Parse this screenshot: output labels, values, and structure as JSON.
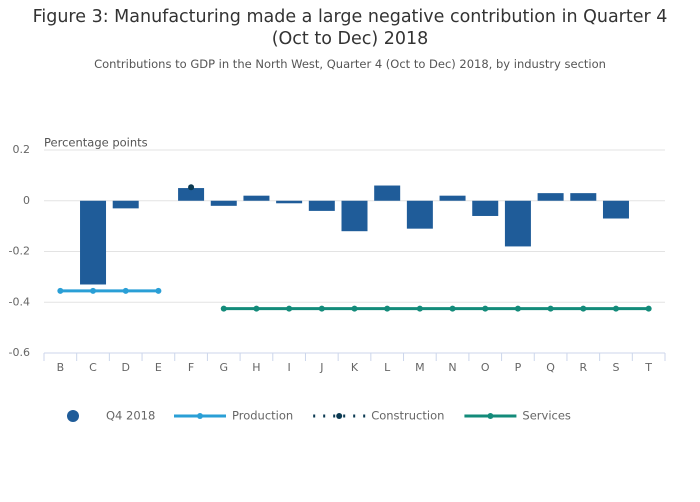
{
  "chart_data": {
    "type": "bar",
    "title": "Figure 3: Manufacturing made a large negative contribution in Quarter 4 (Oct to Dec) 2018",
    "subtitle": "Contributions to GDP in the North West, Quarter 4 (Oct to Dec) 2018, by industry section",
    "y_label": "Percentage points",
    "categories": [
      "B",
      "C",
      "D",
      "E",
      "F",
      "G",
      "H",
      "I",
      "J",
      "K",
      "L",
      "M",
      "N",
      "O",
      "P",
      "Q",
      "R",
      "S",
      "T"
    ],
    "ylim": [
      -0.6,
      0.2
    ],
    "yticks": [
      0.2,
      0,
      -0.2,
      -0.4,
      -0.6
    ],
    "grid": true,
    "legend": "bottom",
    "series": [
      {
        "name": "Q4 2018",
        "type": "bar",
        "color": "#1f5c99",
        "values": [
          null,
          -0.33,
          -0.03,
          null,
          0.05,
          -0.02,
          0.02,
          -0.01,
          -0.04,
          -0.12,
          0.06,
          -0.11,
          0.02,
          -0.06,
          -0.18,
          0.03,
          0.03,
          -0.07,
          null
        ]
      },
      {
        "name": "Production",
        "type": "line",
        "color": "#2a9fd6",
        "values": [
          -0.355,
          -0.355,
          -0.355,
          -0.355,
          null,
          null,
          null,
          null,
          null,
          null,
          null,
          null,
          null,
          null,
          null,
          null,
          null,
          null,
          null
        ]
      },
      {
        "name": "Construction",
        "type": "line",
        "dash": "dotted",
        "color": "#0b3a52",
        "values": [
          null,
          null,
          null,
          null,
          0.053,
          null,
          null,
          null,
          null,
          null,
          null,
          null,
          null,
          null,
          null,
          null,
          null,
          null,
          null
        ]
      },
      {
        "name": "Services",
        "type": "line",
        "color": "#138b7a",
        "values": [
          null,
          null,
          null,
          null,
          null,
          -0.425,
          -0.425,
          -0.425,
          -0.425,
          -0.425,
          -0.425,
          -0.425,
          -0.425,
          -0.425,
          -0.425,
          -0.425,
          -0.425,
          -0.425,
          -0.425
        ]
      }
    ]
  }
}
